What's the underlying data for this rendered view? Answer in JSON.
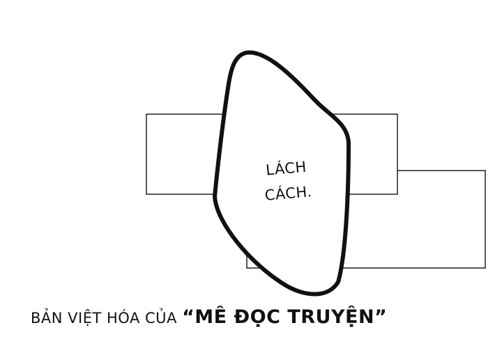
{
  "sound_effect": {
    "line_1": "LÁCH",
    "line_2": "CÁCH."
  },
  "credit": {
    "prefix": "BẢN VIỆT HÓA CỦA ",
    "brand": "“MÊ ĐỌC TRUYỆN”"
  },
  "colors": {
    "ink": "#111111",
    "background": "#ffffff"
  }
}
